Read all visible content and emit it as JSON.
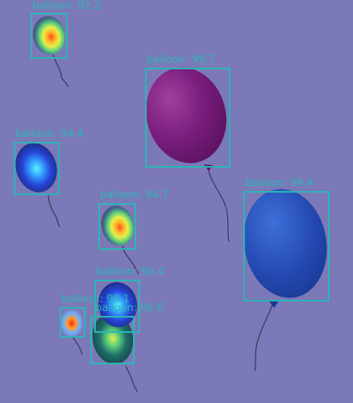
{
  "palette": {
    "background": "#7b79b8",
    "box": "#2bb6b6",
    "label": "#2bb6b6"
  },
  "detections": [
    {
      "label": "balloon: 92.2",
      "style": "heatmap"
    },
    {
      "label": "balloon: 99.7",
      "style": "purple"
    },
    {
      "label": "balloon: 94.4",
      "style": "heatmap-blue"
    },
    {
      "label": "balloon: 99.4",
      "style": "blue"
    },
    {
      "label": "balloon: 94.7",
      "style": "heatmap"
    },
    {
      "label": "balloon: 90.4",
      "style": "heatmap-blue"
    },
    {
      "label": "balloon: 90.1",
      "style": "heatmap"
    },
    {
      "label": "balloon: 90.6",
      "style": "heatmap-blue"
    }
  ]
}
